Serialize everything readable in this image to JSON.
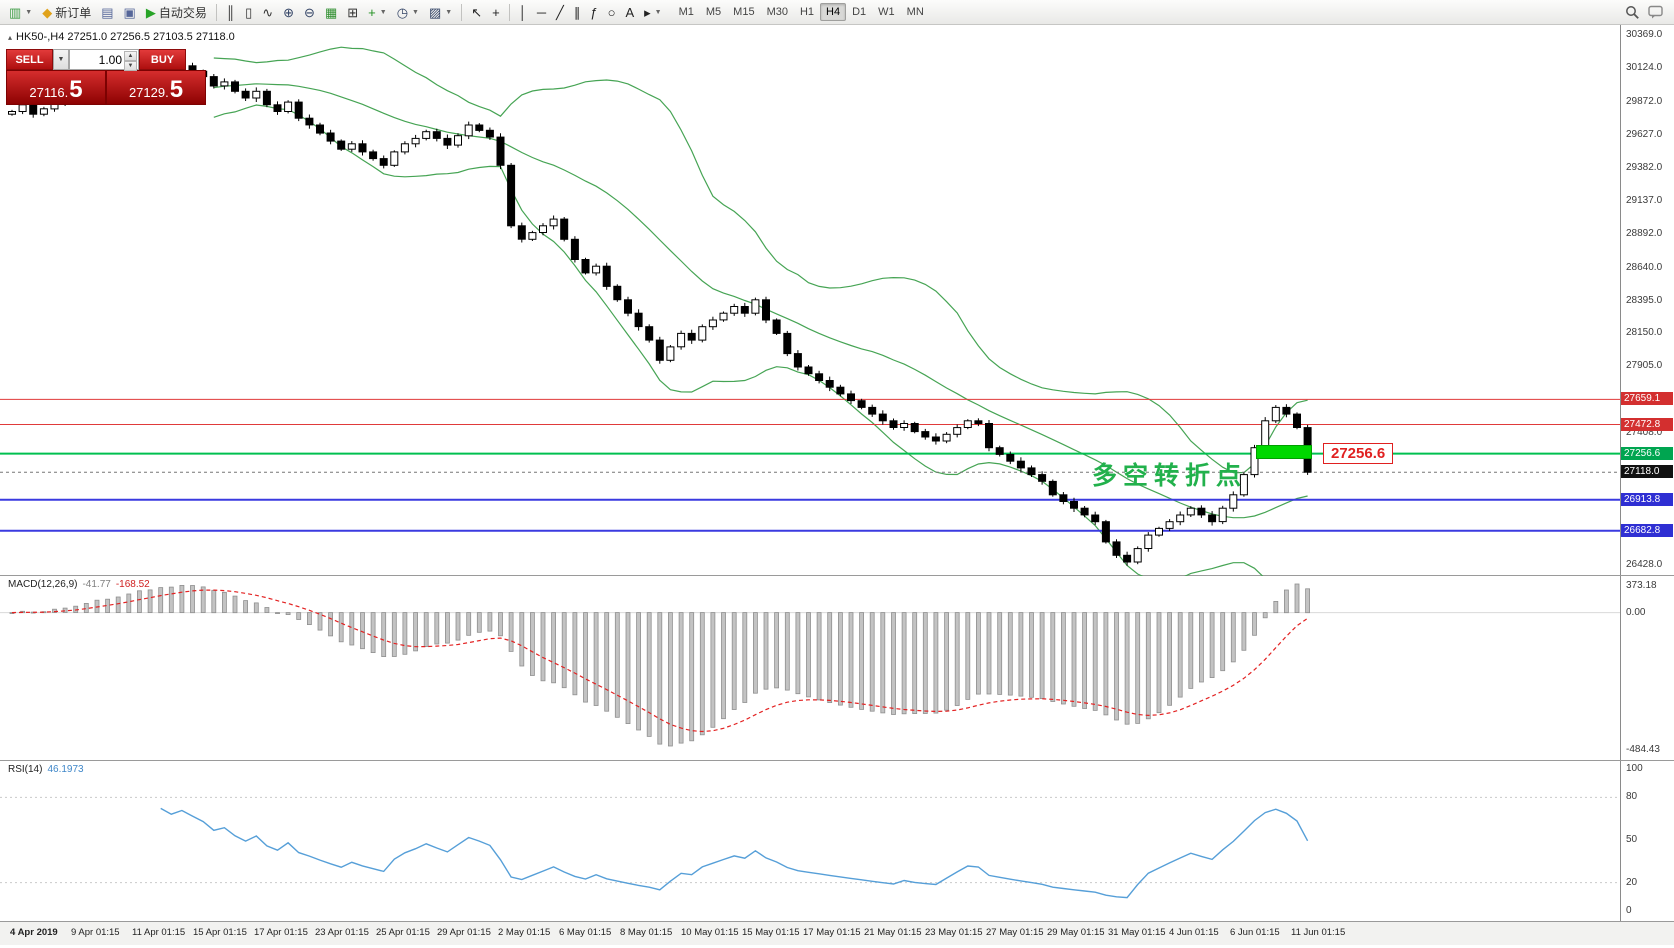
{
  "colors": {
    "bollinger": "#46a454",
    "bull": "#ffffff",
    "bear": "#000000",
    "wick": "#000000",
    "macd_hist": "#c3c3c3",
    "macd_hist_border": "#8f8f8f",
    "macd_signal": "#e32222",
    "rsi_line": "#569fd8",
    "rsi_level": "#c9c9c9",
    "current_price_line": "#777777",
    "annotation_green": "#22b14c",
    "tag_red": "#e02020"
  },
  "toolbar": {
    "buttons": [
      {
        "name": "new-chart-button",
        "glyph": "▥",
        "color": "#3f9d46",
        "dd": true
      },
      {
        "name": "new-order-button",
        "glyph": "◆",
        "color": "#e0a21a",
        "label": "新订单"
      },
      {
        "name": "profiles-button",
        "glyph": "▤",
        "color": "#556699"
      },
      {
        "name": "history-center-button",
        "glyph": "▣",
        "color": "#556699"
      },
      {
        "name": "autotrade-button",
        "glyph": "▶",
        "color": "#27a327",
        "label": "自动交易"
      },
      {
        "type": "sep"
      },
      {
        "name": "bar-chart-button",
        "glyph": "║",
        "color": "#333333"
      },
      {
        "name": "candle-chart-button",
        "glyph": "▯",
        "color": "#333333"
      },
      {
        "name": "line-chart-button",
        "glyph": "∿",
        "color": "#333333"
      },
      {
        "name": "zoom-in-button",
        "glyph": "⊕",
        "color": "#334466"
      },
      {
        "name": "zoom-out-button",
        "glyph": "⊖",
        "color": "#334466"
      },
      {
        "name": "grid-button",
        "glyph": "▦",
        "color": "#2f8f2f"
      },
      {
        "name": "tile-windows-button",
        "glyph": "⊞",
        "color": "#333333"
      },
      {
        "name": "indicators-button",
        "glyph": "+",
        "color": "#1f8f1f",
        "dd": true
      },
      {
        "name": "periods-button",
        "glyph": "◷",
        "color": "#334466",
        "dd": true
      },
      {
        "name": "templates-button",
        "glyph": "▨",
        "color": "#334466",
        "dd": true
      },
      {
        "type": "sep"
      },
      {
        "name": "cursor-button",
        "glyph": "↖",
        "color": "#222222"
      },
      {
        "name": "crosshair-button",
        "glyph": "+",
        "color": "#222222"
      },
      {
        "type": "sep"
      },
      {
        "name": "vline-button",
        "glyph": "│",
        "color": "#222222"
      },
      {
        "name": "hline-button",
        "glyph": "─",
        "color": "#222222"
      },
      {
        "name": "trendline-button",
        "glyph": "╱",
        "color": "#222222"
      },
      {
        "name": "channel-button",
        "glyph": "∥",
        "color": "#222222"
      },
      {
        "name": "fibonacci-button",
        "glyph": "ƒ",
        "color": "#222222"
      },
      {
        "name": "shapes-button",
        "glyph": "○",
        "color": "#222222"
      },
      {
        "name": "text-button",
        "glyph": "A",
        "color": "#222222"
      },
      {
        "name": "arrows-button",
        "glyph": "▸",
        "color": "#222222",
        "dd": true
      }
    ],
    "timeframes": [
      "M1",
      "M5",
      "M15",
      "M30",
      "H1",
      "H4",
      "D1",
      "W1",
      "MN"
    ],
    "active_timeframe": "H4"
  },
  "chart": {
    "collapse_arrow": "▴",
    "symbol_line": "HK50-,H4  27251.0 27256.5 27103.5 27118.0",
    "trade_panel": {
      "sell_label": "SELL",
      "buy_label": "BUY",
      "volume": "1.00",
      "sell_price_main": "27116.",
      "sell_price_big": "5",
      "buy_price_main": "27129.",
      "buy_price_big": "5"
    },
    "annotation_text": "多空转折点",
    "price_tag_text": "27256.6"
  },
  "chart_data": {
    "type": "candlestick",
    "symbol": "HK50",
    "timeframe": "H4",
    "ohlc_header": {
      "open": 27251.0,
      "high": 27256.5,
      "low": 27103.5,
      "close": 27118.0
    },
    "price_range": [
      26428.0,
      30369.0
    ],
    "first_open": 29780,
    "closes": [
      29800,
      29850,
      29780,
      29820,
      29900,
      29870,
      29910,
      29960,
      30000,
      29950,
      30010,
      30060,
      30100,
      30050,
      30120,
      30080,
      30140,
      30100,
      30060,
      29990,
      30020,
      29950,
      29900,
      29950,
      29850,
      29800,
      29870,
      29750,
      29700,
      29640,
      29580,
      29520,
      29560,
      29500,
      29450,
      29400,
      29500,
      29560,
      29600,
      29650,
      29600,
      29550,
      29620,
      29700,
      29660,
      29610,
      29400,
      28950,
      28850,
      28900,
      28950,
      29000,
      28850,
      28700,
      28600,
      28650,
      28500,
      28400,
      28300,
      28200,
      28100,
      27950,
      28050,
      28150,
      28100,
      28200,
      28250,
      28300,
      28350,
      28300,
      28400,
      28250,
      28150,
      28000,
      27900,
      27850,
      27800,
      27750,
      27700,
      27650,
      27600,
      27550,
      27500,
      27450,
      27480,
      27420,
      27380,
      27350,
      27400,
      27450,
      27500,
      27480,
      27300,
      27250,
      27200,
      27150,
      27100,
      27050,
      26950,
      26900,
      26850,
      26800,
      26750,
      26600,
      26500,
      26450,
      26550,
      26650,
      26700,
      26750,
      26800,
      26850,
      26800,
      26750,
      26850,
      26950,
      27100,
      27300,
      27500,
      27600,
      27550,
      27450,
      27118
    ],
    "y_axis_labels": [
      {
        "label": "30369.0",
        "price": 30369.0
      },
      {
        "label": "30124.0",
        "price": 30124.0
      },
      {
        "label": "29872.0",
        "price": 29872.0
      },
      {
        "label": "29627.0",
        "price": 29627.0
      },
      {
        "label": "29382.0",
        "price": 29382.0
      },
      {
        "label": "29137.0",
        "price": 29137.0
      },
      {
        "label": "28892.0",
        "price": 28892.0
      },
      {
        "label": "28640.0",
        "price": 28640.0
      },
      {
        "label": "28395.0",
        "price": 28395.0
      },
      {
        "label": "28150.0",
        "price": 28150.0
      },
      {
        "label": "27905.0",
        "price": 27905.0
      },
      {
        "label": "27408.0",
        "price": 27408.0
      },
      {
        "label": "26428.0",
        "price": 26428.0
      }
    ],
    "price_markers": [
      {
        "label": "27659.1",
        "price": 27659.1,
        "bg": "#d32f2f"
      },
      {
        "label": "27472.8",
        "price": 27472.8,
        "bg": "#d32f2f"
      },
      {
        "label": "27256.6",
        "price": 27256.6,
        "bg": "#00a550"
      },
      {
        "label": "27118.0",
        "price": 27118.0,
        "bg": "#111111"
      },
      {
        "label": "26913.8",
        "price": 26913.8,
        "bg": "#2f2fd3"
      },
      {
        "label": "26682.8",
        "price": 26682.8,
        "bg": "#2f2fd3"
      }
    ],
    "levels": [
      {
        "price": 27659.1,
        "color": "#e03a3a",
        "width": 1
      },
      {
        "price": 27472.8,
        "color": "#e03a3a",
        "width": 1
      },
      {
        "price": 27256.6,
        "color": "#00c050",
        "width": 2
      },
      {
        "price": 26913.8,
        "color": "#3a3ae0",
        "width": 2
      },
      {
        "price": 26682.8,
        "color": "#3a3ae0",
        "width": 2
      }
    ],
    "current_price": {
      "label": "27118.0",
      "price": 27118.0
    },
    "x_axis_labels": [
      "4 Apr 2019",
      "9 Apr 01:15",
      "11 Apr 01:15",
      "15 Apr 01:15",
      "17 Apr 01:15",
      "23 Apr 01:15",
      "25 Apr 01:15",
      "29 Apr 01:15",
      "2 May 01:15",
      "6 May 01:15",
      "8 May 01:15",
      "10 May 01:15",
      "15 May 01:15",
      "17 May 01:15",
      "21 May 01:15",
      "23 May 01:15",
      "27 May 01:15",
      "29 May 01:15",
      "31 May 01:15",
      "4 Jun 01:15",
      "6 Jun 01:15",
      "11 Jun 01:15"
    ],
    "indicators": [
      {
        "name": "Bollinger Bands",
        "period": 20,
        "deviation": 2
      },
      {
        "name": "MACD",
        "params": [
          12,
          26,
          9
        ],
        "main": -41.77,
        "signal": -168.52,
        "axis_max": 373.18,
        "axis_min": -484.43
      },
      {
        "name": "RSI",
        "period": 14,
        "value": 46.1973,
        "scale": [
          0,
          100
        ],
        "levels": [
          80,
          20
        ]
      }
    ]
  },
  "macd": {
    "label": "MACD(12,26,9)",
    "main_value": "-41.77",
    "signal_value": "-168.52",
    "axis_top": "373.18",
    "axis_zero": "0.00",
    "axis_bottom": "-484.43"
  },
  "rsi": {
    "label": "RSI(14)",
    "value": "46.1973",
    "axis": [
      {
        "label": "100",
        "v": 100
      },
      {
        "label": "80",
        "v": 80
      },
      {
        "label": "50",
        "v": 50
      },
      {
        "label": "20",
        "v": 20
      },
      {
        "label": "0",
        "v": 0
      }
    ]
  }
}
